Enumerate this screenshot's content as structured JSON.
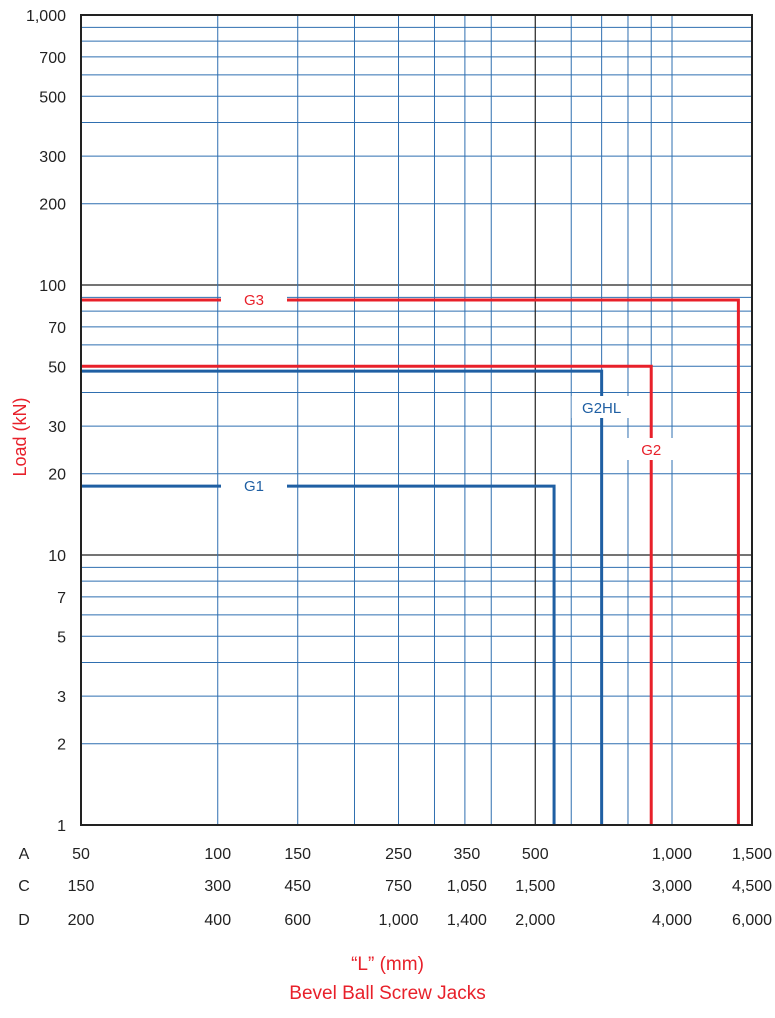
{
  "chart_data": {
    "type": "line",
    "ylabel": "Load (kN)",
    "y_scale": "log",
    "ylim": [
      1,
      1000
    ],
    "x_scale": "log",
    "xlim_A": [
      50,
      1500
    ],
    "y_ticks": [
      1,
      2,
      3,
      5,
      7,
      10,
      20,
      30,
      50,
      70,
      100,
      200,
      300,
      500,
      700,
      1000
    ],
    "y_tick_labels": [
      "1",
      "2",
      "3",
      "5",
      "7",
      "10",
      "20",
      "30",
      "50",
      "70",
      "100",
      "200",
      "300",
      "500",
      "700",
      "1,000"
    ],
    "x_axis_rows": [
      {
        "name": "A",
        "values": [
          50,
          100,
          150,
          250,
          350,
          500,
          1000,
          1500
        ],
        "labels": [
          "50",
          "100",
          "150",
          "250",
          "350",
          "500",
          "1,000",
          "1,500"
        ]
      },
      {
        "name": "C",
        "values": [
          150,
          300,
          450,
          750,
          1050,
          1500,
          3000,
          4500
        ],
        "labels": [
          "150",
          "300",
          "450",
          "750",
          "1,050",
          "1,500",
          "3,000",
          "4,500"
        ]
      },
      {
        "name": "D",
        "values": [
          200,
          400,
          600,
          1000,
          1400,
          2000,
          4000,
          6000
        ],
        "labels": [
          "200",
          "400",
          "600",
          "1,000",
          "1,400",
          "2,000",
          "4,000",
          "6,000"
        ]
      }
    ],
    "series": [
      {
        "name": "G1",
        "load": 18,
        "max_L_A": 550,
        "color": "#1f5fa3"
      },
      {
        "name": "G2HL",
        "load": 48,
        "max_L_A": 700,
        "color": "#1f5fa3"
      },
      {
        "name": "G2",
        "load": 50,
        "max_L_A": 900,
        "color": "#e8202a"
      },
      {
        "name": "G3",
        "load": 88,
        "max_L_A": 1400,
        "color": "#e8202a"
      }
    ],
    "xlabel": "“L” (mm)",
    "subtitle": "Bevel Ball Screw Jacks",
    "colors": {
      "grid": "#2f6fb0",
      "frame": "#222222",
      "accent": "#e8202a"
    }
  }
}
